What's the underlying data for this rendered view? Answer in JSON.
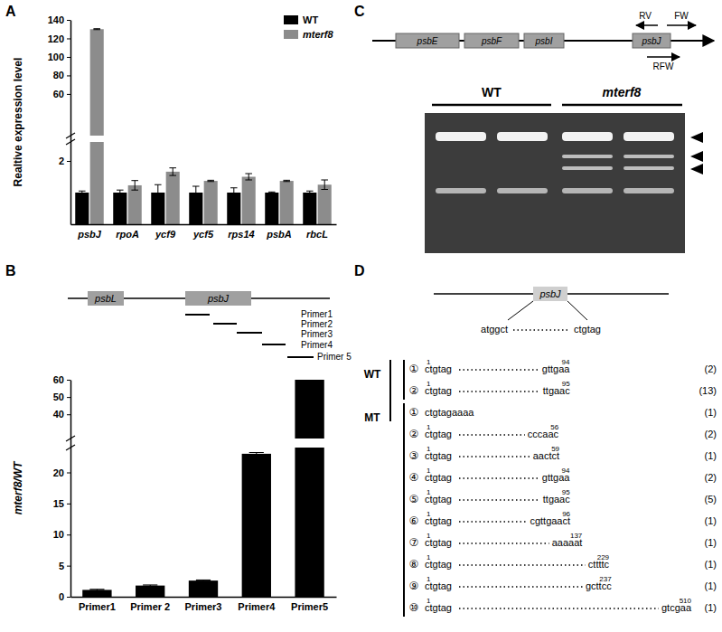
{
  "panel_labels": [
    "A",
    "B",
    "C",
    "D"
  ],
  "chart_data": [
    {
      "type": "bar",
      "categories": [
        "psbJ",
        "rpoA",
        "ycf9",
        "ycf5",
        "rps14",
        "psbA",
        "rbcL"
      ],
      "series": [
        {
          "name": "WT",
          "color": "#000000",
          "values": [
            1,
            1,
            1,
            1,
            1,
            1,
            1
          ],
          "errors": [
            0.05,
            0.08,
            0.25,
            0.2,
            0.15,
            0.02,
            0.05
          ]
        },
        {
          "name": "mterf8",
          "color": "#8c8c8c",
          "values": [
            130,
            1.23,
            1.66,
            1.37,
            1.5,
            1.37,
            1.25
          ],
          "errors": [
            0.5,
            0.15,
            0.12,
            0.02,
            0.1,
            0.02,
            0.15
          ]
        }
      ],
      "y_label": "Realtive expression level",
      "ylim": [
        0,
        140
      ],
      "ybreak": [
        2.6,
        15
      ],
      "yticks": [
        2,
        60,
        80,
        100,
        120,
        140
      ],
      "legend": "top-right"
    },
    {
      "type": "bar",
      "categories": [
        "Primer1",
        "Primer 2",
        "Primer3",
        "Primer4",
        "Primer5"
      ],
      "values": [
        1.1,
        1.8,
        2.6,
        23,
        60
      ],
      "errors": [
        0.1,
        0.1,
        0.1,
        0.2,
        0.1
      ],
      "color": "#000000",
      "y_label": "mterf8/WT",
      "ylim": [
        0,
        60
      ],
      "ybreak": [
        24,
        26
      ],
      "yticks": [
        0,
        5,
        10,
        15,
        20,
        40,
        50,
        60
      ]
    }
  ],
  "diagram_b": {
    "genes": [
      "psbL",
      "psbJ"
    ],
    "primers": [
      "Primer1",
      "Primer2",
      "Primer3",
      "Primer4",
      "Primer 5"
    ]
  },
  "panel_c": {
    "genes": [
      "psbE",
      "psbF",
      "psbI",
      "psbJ"
    ],
    "primers": [
      "RV",
      "FW",
      "RFW"
    ],
    "lanes": [
      "WT",
      "mterf8"
    ]
  },
  "panel_d": {
    "gene": "psbJ",
    "start_seq": "atggct",
    "end_seq": "ctgtag",
    "groups": [
      {
        "label": "WT",
        "rows": [
          {
            "index": "①",
            "start": "ctgtag",
            "start_pos": 1,
            "end": "gttgaa",
            "end_pos": 94,
            "count": "(2)"
          },
          {
            "index": "②",
            "start": "ctgtag",
            "start_pos": 1,
            "end": "ttgaac",
            "end_pos": 95,
            "count": "(13)"
          }
        ]
      },
      {
        "label": "MT",
        "rows": [
          {
            "index": "①",
            "seq": "ctgtagaaaa",
            "count": "(1)"
          },
          {
            "index": "②",
            "start": "ctgtag",
            "start_pos": 1,
            "end": "cccaac",
            "end_pos": 56,
            "count": "(2)"
          },
          {
            "index": "③",
            "start": "ctgtag",
            "start_pos": 1,
            "end": "aactct",
            "end_pos": 59,
            "count": "(1)"
          },
          {
            "index": "④",
            "start": "ctgtag",
            "start_pos": 1,
            "end": "gttgaa",
            "end_pos": 94,
            "count": "(2)"
          },
          {
            "index": "⑤",
            "start": "ctgtag",
            "start_pos": 1,
            "end": "ttgaac",
            "end_pos": 95,
            "count": "(5)"
          },
          {
            "index": "⑥",
            "start": "ctgtag",
            "start_pos": 1,
            "end": "cgttgaact",
            "end_pos": 96,
            "count": "(1)"
          },
          {
            "index": "⑦",
            "start": "ctgtag",
            "start_pos": 1,
            "end": "aaaaat",
            "end_pos": 137,
            "count": "(1)"
          },
          {
            "index": "⑧",
            "start": "ctgtag",
            "start_pos": 1,
            "end": "cttttc",
            "end_pos": 229,
            "count": "(1)"
          },
          {
            "index": "⑨",
            "start": "ctgtag",
            "start_pos": 1,
            "end": "gcttcc",
            "end_pos": 237,
            "count": "(1)"
          },
          {
            "index": "⑩",
            "start": "ctgtag",
            "start_pos": 1,
            "end": "gtcgaa",
            "end_pos": 510,
            "count": "(1)"
          }
        ]
      }
    ]
  }
}
